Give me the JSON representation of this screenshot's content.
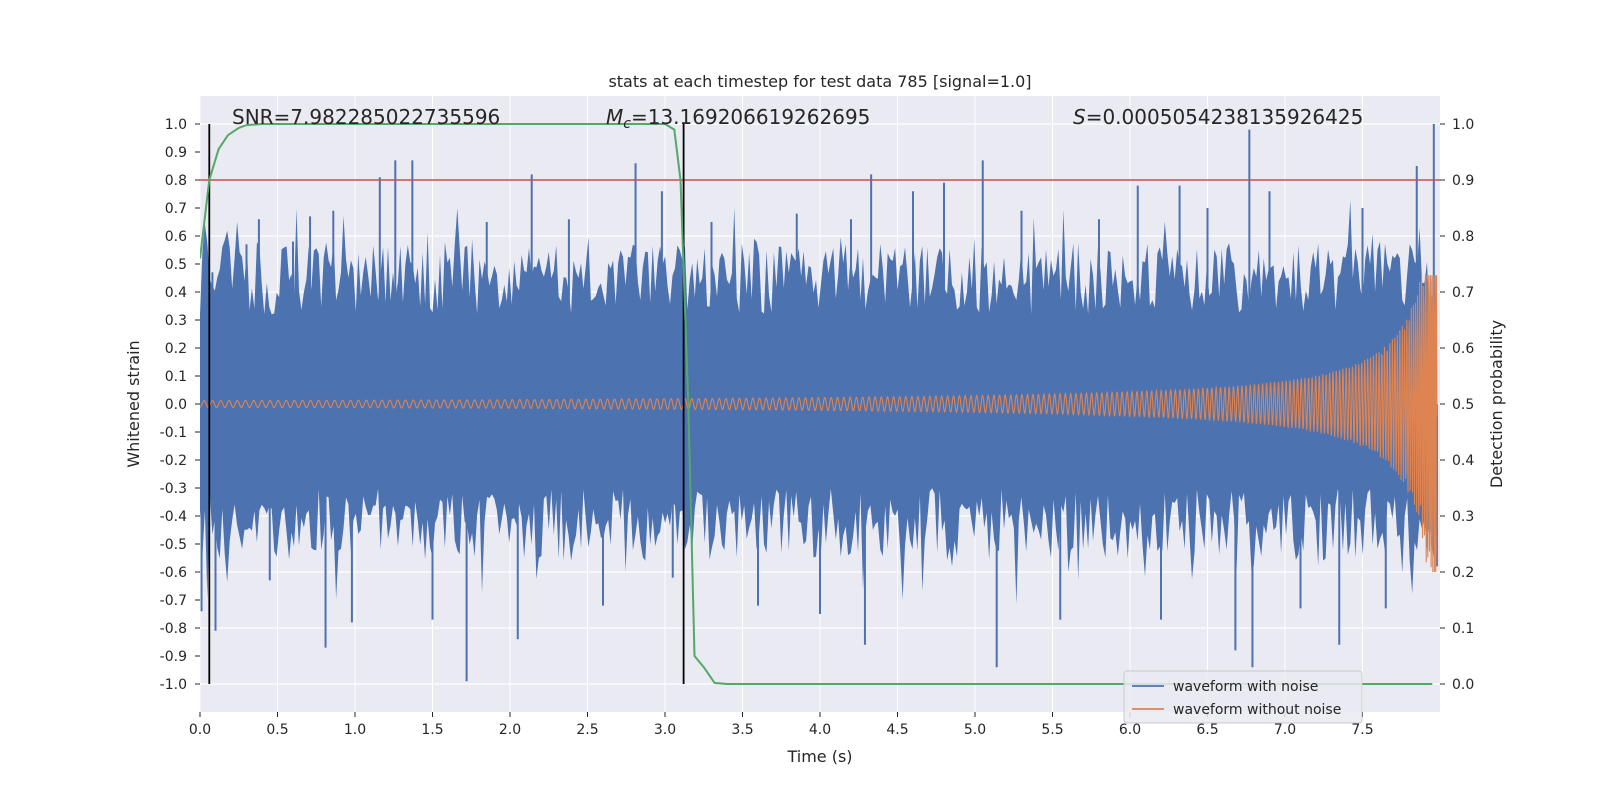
{
  "chart_data": {
    "type": "line",
    "title": "stats at each timestep for test data 785 [signal=1.0]",
    "xlabel": "Time (s)",
    "ylabel_left": "Whitened strain",
    "ylabel_right": "Detection probability",
    "xlim": [
      0.0,
      8.0
    ],
    "ylim_left": [
      -1.1,
      1.1
    ],
    "ylim_right": [
      -0.05,
      1.05
    ],
    "xticks": [
      "0.0",
      "0.5",
      "1.0",
      "1.5",
      "2.0",
      "2.5",
      "3.0",
      "3.5",
      "4.0",
      "4.5",
      "5.0",
      "5.5",
      "6.0",
      "6.5",
      "7.0",
      "7.5"
    ],
    "xtick_values": [
      0.0,
      0.5,
      1.0,
      1.5,
      2.0,
      2.5,
      3.0,
      3.5,
      4.0,
      4.5,
      5.0,
      5.5,
      6.0,
      6.5,
      7.0,
      7.5
    ],
    "yticks_left": [
      "1.0",
      "0.9",
      "0.8",
      "0.7",
      "0.6",
      "0.5",
      "0.4",
      "0.3",
      "0.2",
      "0.1",
      "0.0",
      "-0.1",
      "-0.2",
      "-0.3",
      "-0.4",
      "-0.5",
      "-0.6",
      "-0.7",
      "-0.8",
      "-0.9",
      "-1.0"
    ],
    "ytick_values_left": [
      1.0,
      0.9,
      0.8,
      0.7,
      0.6,
      0.5,
      0.4,
      0.3,
      0.2,
      0.1,
      0.0,
      -0.1,
      -0.2,
      -0.3,
      -0.4,
      -0.5,
      -0.6,
      -0.7,
      -0.8,
      -0.9,
      -1.0
    ],
    "yticks_right": [
      "1.0",
      "0.9",
      "0.8",
      "0.7",
      "0.6",
      "0.5",
      "0.4",
      "0.3",
      "0.2",
      "0.1",
      "0.0"
    ],
    "ytick_values_right": [
      1.0,
      0.9,
      0.8,
      0.7,
      0.6,
      0.5,
      0.4,
      0.3,
      0.2,
      0.1,
      0.0
    ],
    "annotations": {
      "snr": "SNR=7.982285022735596",
      "mc_symbol": "M",
      "mc_sub": "c",
      "mc_value": "=13.169206619262695",
      "s_symbol": "S",
      "s_value": "=0.0005054238135926425"
    },
    "threshold_line": {
      "y": 0.8,
      "color": "#c44e52"
    },
    "vertical_lines": [
      0.06,
      3.12
    ],
    "detection_probability": {
      "name": "Detection probability",
      "color": "#55a868",
      "x": [
        0.0,
        0.06,
        0.12,
        0.18,
        0.25,
        0.3,
        0.4,
        0.5,
        1.0,
        2.0,
        2.9,
        3.0,
        3.06,
        3.1,
        3.15,
        3.19,
        3.25,
        3.32,
        3.4,
        4.0,
        5.0,
        6.0,
        7.0,
        7.95
      ],
      "y": [
        0.76,
        0.9,
        0.955,
        0.98,
        0.993,
        0.998,
        1.0,
        1.0,
        1.0,
        1.0,
        1.0,
        1.0,
        0.99,
        0.9,
        0.5,
        0.05,
        0.03,
        0.002,
        0.0,
        0.0,
        0.0,
        0.0,
        0.0,
        0.0
      ]
    },
    "series": [
      {
        "name": "waveform with noise",
        "color": "#4c72b0"
      },
      {
        "name": "waveform without noise",
        "color": "#dd8452"
      }
    ],
    "noise_spikes": [
      {
        "x": 0.01,
        "y": -0.74
      },
      {
        "x": 0.03,
        "y": 0.36
      },
      {
        "x": 0.08,
        "y": 0.47
      },
      {
        "x": 0.1,
        "y": -0.81
      },
      {
        "x": 0.17,
        "y": 0.54
      },
      {
        "x": 0.3,
        "y": 0.57
      },
      {
        "x": 0.38,
        "y": 0.66
      },
      {
        "x": 0.45,
        "y": -0.63
      },
      {
        "x": 0.6,
        "y": 0.58
      },
      {
        "x": 0.71,
        "y": 0.67
      },
      {
        "x": 0.81,
        "y": -0.87
      },
      {
        "x": 0.86,
        "y": 0.69
      },
      {
        "x": 0.98,
        "y": -0.78
      },
      {
        "x": 1.16,
        "y": 0.81
      },
      {
        "x": 1.26,
        "y": 0.87
      },
      {
        "x": 1.37,
        "y": 0.87
      },
      {
        "x": 1.5,
        "y": -0.77
      },
      {
        "x": 1.72,
        "y": -0.99
      },
      {
        "x": 1.85,
        "y": 0.65
      },
      {
        "x": 2.05,
        "y": -0.84
      },
      {
        "x": 2.14,
        "y": 0.82
      },
      {
        "x": 2.38,
        "y": 0.66
      },
      {
        "x": 2.6,
        "y": -0.72
      },
      {
        "x": 2.81,
        "y": 0.86
      },
      {
        "x": 2.98,
        "y": 0.76
      },
      {
        "x": 3.05,
        "y": -0.62
      },
      {
        "x": 3.3,
        "y": 0.65
      },
      {
        "x": 3.6,
        "y": -0.72
      },
      {
        "x": 3.85,
        "y": 0.68
      },
      {
        "x": 4.0,
        "y": -0.75
      },
      {
        "x": 4.2,
        "y": 0.66
      },
      {
        "x": 4.29,
        "y": -0.86
      },
      {
        "x": 4.33,
        "y": 0.82
      },
      {
        "x": 4.6,
        "y": 0.76
      },
      {
        "x": 4.8,
        "y": 0.79
      },
      {
        "x": 5.05,
        "y": 0.87
      },
      {
        "x": 5.14,
        "y": -0.94
      },
      {
        "x": 5.3,
        "y": 0.69
      },
      {
        "x": 5.55,
        "y": -0.77
      },
      {
        "x": 5.8,
        "y": 0.66
      },
      {
        "x": 6.05,
        "y": 0.78
      },
      {
        "x": 6.2,
        "y": -0.77
      },
      {
        "x": 6.32,
        "y": 0.78
      },
      {
        "x": 6.5,
        "y": 0.7
      },
      {
        "x": 6.68,
        "y": -0.88
      },
      {
        "x": 6.77,
        "y": 0.98
      },
      {
        "x": 6.79,
        "y": -0.94
      },
      {
        "x": 6.9,
        "y": 0.76
      },
      {
        "x": 7.1,
        "y": -0.73
      },
      {
        "x": 7.35,
        "y": -0.86
      },
      {
        "x": 7.5,
        "y": 0.7
      },
      {
        "x": 7.65,
        "y": -0.73
      },
      {
        "x": 7.85,
        "y": 0.85
      },
      {
        "x": 7.96,
        "y": 1.0
      },
      {
        "x": 7.98,
        "y": -0.58
      }
    ]
  }
}
